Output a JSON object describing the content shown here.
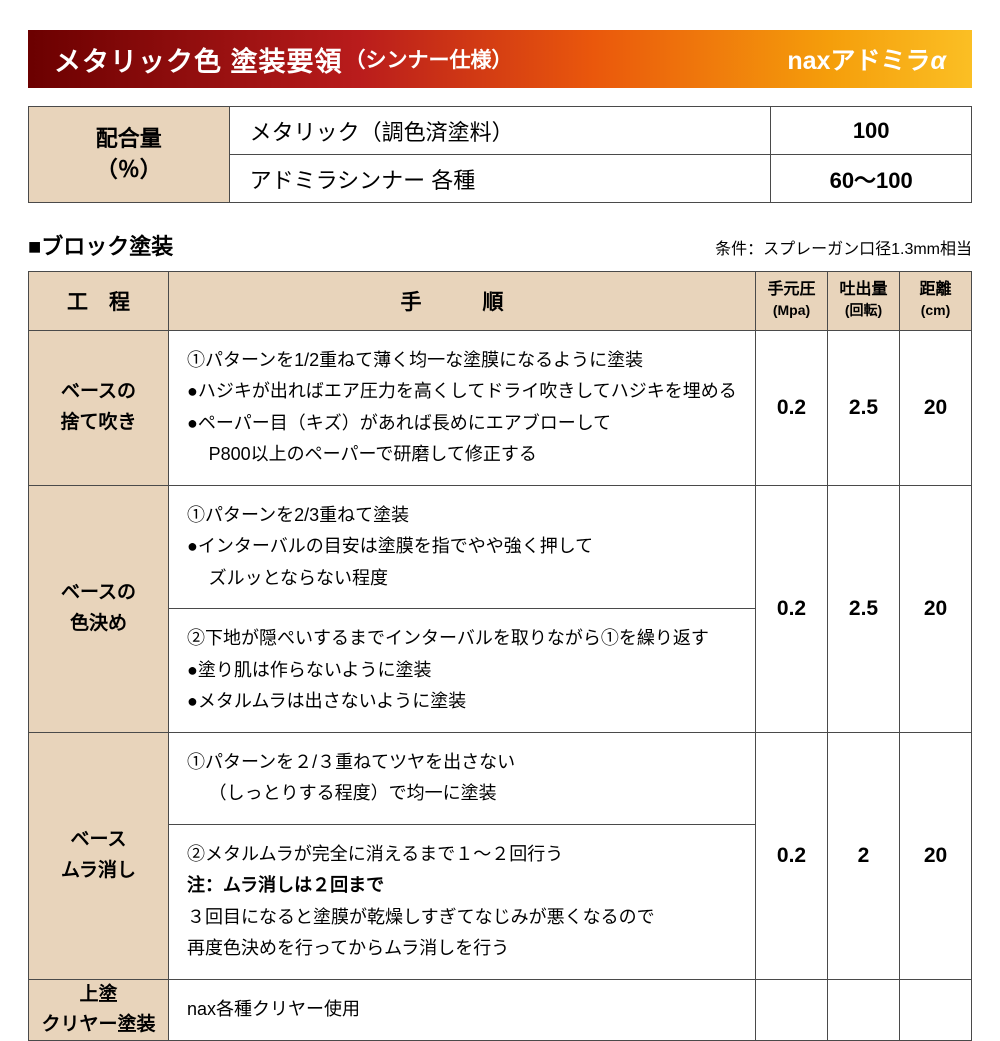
{
  "header": {
    "title": "メタリック色 塗装要領",
    "subtitle": "（シンナー仕様）",
    "brand_prefix": "nax",
    "brand_name": "アドミラ",
    "brand_suffix": "α"
  },
  "ratio": {
    "label_line1": "配合量",
    "label_line2": "（％）",
    "rows": [
      {
        "name": "メタリック（調色済塗料）",
        "value": "100"
      },
      {
        "name": "アドミラシンナー 各種",
        "value": "60〜100"
      }
    ]
  },
  "section": {
    "title": "■ブロック塗装",
    "condition": "条件：スプレーガン口径1.3mm相当"
  },
  "columns": {
    "proc": "工　程",
    "steps": "手　順",
    "pressure": "手元圧",
    "pressure_unit": "(Mpa)",
    "output": "吐出量",
    "output_unit": "(回転)",
    "distance": "距離",
    "distance_unit": "(cm)"
  },
  "rows": [
    {
      "proc": "ベースの\n捨て吹き",
      "steps": [
        "①パターンを1/2重ねて薄く均一な塗膜になるように塗装",
        "●ハジキが出ればエア圧力を高くしてドライ吹きしてハジキを埋める",
        "●ペーパー目（キズ）があれば長めにエアブローして",
        "　P800以上のペーパーで研磨して修正する"
      ],
      "pressure": "0.2",
      "output": "2.5",
      "distance": "20"
    },
    {
      "proc": "ベースの\n色決め",
      "parts": [
        {
          "steps": [
            "①パターンを2/3重ねて塗装",
            "●インターバルの目安は塗膜を指でやや強く押して",
            "　ズルッとならない程度"
          ]
        },
        {
          "steps": [
            "②下地が隠ぺいするまでインターバルを取りながら①を繰り返す",
            "●塗り肌は作らないように塗装",
            "●メタルムラは出さないように塗装"
          ]
        }
      ],
      "pressure": "0.2",
      "output": "2.5",
      "distance": "20"
    },
    {
      "proc": "ベース\nムラ消し",
      "parts": [
        {
          "steps": [
            "①パターンを２/３重ねてツヤを出さない",
            "　（しっとりする程度）で均一に塗装"
          ]
        },
        {
          "steps": [
            "②メタルムラが完全に消えるまで１〜２回行う",
            "注：ムラ消しは２回まで",
            "３回目になると塗膜が乾燥しすぎてなじみが悪くなるので",
            "再度色決めを行ってからムラ消しを行う"
          ],
          "bold_idx": [
            1
          ]
        }
      ],
      "pressure": "0.2",
      "output": "2",
      "distance": "20"
    },
    {
      "proc": "上塗\nクリヤー塗装",
      "steps": [
        "nax各種クリヤー使用"
      ],
      "pressure": "",
      "output": "",
      "distance": ""
    }
  ]
}
